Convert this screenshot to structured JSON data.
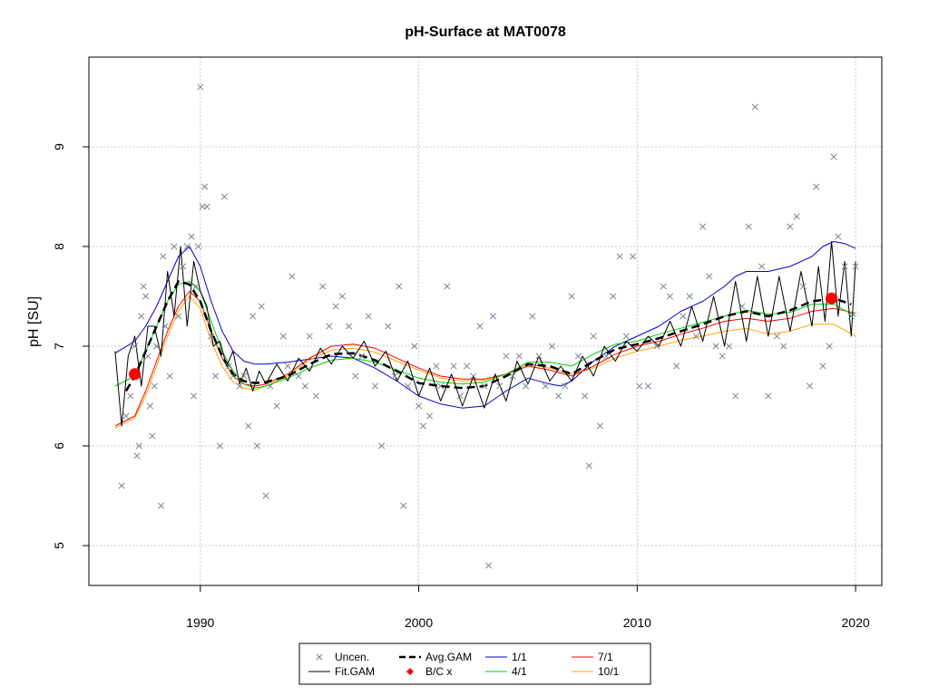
{
  "chart_data": {
    "type": "scatter",
    "title": "pH-Surface at MAT0078",
    "xlabel": "",
    "ylabel": "pH [SU]",
    "xlim": [
      1984.9,
      2021.2
    ],
    "ylim": [
      4.6,
      9.9
    ],
    "x_ticks": [
      1990,
      2000,
      2010,
      2020
    ],
    "x_tick_labels": [
      "1990",
      "2000",
      "2010",
      "2020"
    ],
    "y_ticks": [
      5,
      6,
      7,
      8,
      9
    ],
    "y_tick_labels": [
      "5",
      "6",
      "7",
      "8",
      "9"
    ],
    "grid": true,
    "legend_position": "bottom",
    "legend": [
      {
        "label": "Uncen.",
        "symbol": "x",
        "color": "#708090"
      },
      {
        "label": "Avg.GAM",
        "symbol": "dashed-line",
        "color": "#000000"
      },
      {
        "label": "1/1",
        "symbol": "line",
        "color": "#0000CD"
      },
      {
        "label": "7/1",
        "symbol": "line",
        "color": "#FF0000"
      },
      {
        "label": "Fit.GAM",
        "symbol": "line",
        "color": "#000000"
      },
      {
        "label": "B/C x",
        "symbol": "diamond",
        "color": "#FF0000"
      },
      {
        "label": "4/1",
        "symbol": "line",
        "color": "#00CD00"
      },
      {
        "label": "10/1",
        "symbol": "line",
        "color": "#FFA500"
      }
    ],
    "series": [
      {
        "name": "1/1",
        "color": "#0000CD",
        "x": [
          1986.1,
          1987,
          1987.5,
          1988,
          1988.5,
          1989,
          1989.5,
          1990,
          1990.5,
          1991,
          1991.5,
          1992,
          1992.5,
          1993,
          1994,
          1995,
          1996,
          1997,
          1998,
          1999,
          2000,
          2001,
          2002,
          2003,
          2004,
          2005,
          2006,
          2006.5,
          2007,
          2008,
          2009,
          2010,
          2011,
          2012,
          2013,
          2014,
          2014.5,
          2015,
          2015.5,
          2016,
          2017,
          2018,
          2018.5,
          2019,
          2019.5,
          2020
        ],
        "y": [
          6.93,
          7.05,
          7.2,
          7.4,
          7.65,
          7.9,
          8.0,
          7.8,
          7.45,
          7.15,
          6.95,
          6.85,
          6.82,
          6.82,
          6.84,
          6.87,
          6.9,
          6.88,
          6.78,
          6.65,
          6.5,
          6.42,
          6.38,
          6.4,
          6.55,
          6.68,
          6.62,
          6.6,
          6.65,
          6.85,
          7.0,
          7.1,
          7.2,
          7.35,
          7.45,
          7.6,
          7.7,
          7.75,
          7.75,
          7.75,
          7.8,
          7.9,
          8.0,
          8.05,
          8.03,
          7.98
        ]
      },
      {
        "name": "7/1",
        "color": "#FF0000",
        "x": [
          1986.1,
          1987,
          1987.5,
          1988,
          1988.5,
          1989,
          1989.5,
          1990,
          1990.5,
          1991,
          1991.5,
          1992,
          1992.5,
          1993,
          1994,
          1995,
          1996,
          1997,
          1998,
          1999,
          2000,
          2001,
          2002,
          2003,
          2004,
          2005,
          2006,
          2007,
          2008,
          2009,
          2010,
          2011,
          2012,
          2013,
          2014,
          2015,
          2016,
          2017,
          2018,
          2019,
          2020
        ],
        "y": [
          6.2,
          6.3,
          6.55,
          6.85,
          7.15,
          7.4,
          7.55,
          7.45,
          7.15,
          6.88,
          6.7,
          6.62,
          6.6,
          6.62,
          6.72,
          6.88,
          7.0,
          7.02,
          6.98,
          6.88,
          6.78,
          6.7,
          6.67,
          6.67,
          6.72,
          6.8,
          6.76,
          6.7,
          6.8,
          6.92,
          7.0,
          7.05,
          7.12,
          7.18,
          7.25,
          7.28,
          7.25,
          7.28,
          7.35,
          7.38,
          7.33
        ]
      },
      {
        "name": "4/1",
        "color": "#00CD00",
        "x": [
          1986.1,
          1987,
          1987.5,
          1988,
          1988.5,
          1989,
          1989.5,
          1990,
          1990.5,
          1991,
          1991.5,
          1992,
          1992.5,
          1993,
          1994,
          1995,
          1996,
          1997,
          1998,
          1999,
          2000,
          2001,
          2002,
          2003,
          2004,
          2005,
          2006,
          2007,
          2008,
          2009,
          2010,
          2011,
          2012,
          2013,
          2014,
          2015,
          2016,
          2017,
          2018,
          2019,
          2020
        ],
        "y": [
          6.6,
          6.7,
          6.95,
          7.2,
          7.45,
          7.62,
          7.65,
          7.55,
          7.25,
          6.95,
          6.75,
          6.62,
          6.58,
          6.6,
          6.68,
          6.78,
          6.86,
          6.88,
          6.84,
          6.76,
          6.68,
          6.64,
          6.62,
          6.64,
          6.72,
          6.84,
          6.84,
          6.8,
          6.92,
          7.02,
          7.05,
          7.12,
          7.18,
          7.24,
          7.3,
          7.36,
          7.32,
          7.34,
          7.42,
          7.42,
          7.3
        ]
      },
      {
        "name": "10/1",
        "color": "#FFA500",
        "x": [
          1986.1,
          1987,
          1987.5,
          1988,
          1988.5,
          1989,
          1989.5,
          1990,
          1990.5,
          1991,
          1991.5,
          1992,
          1992.5,
          1993,
          1994,
          1995,
          1996,
          1997,
          1998,
          1999,
          2000,
          2001,
          2002,
          2003,
          2004,
          2005,
          2006,
          2007,
          2008,
          2009,
          2010,
          2011,
          2012,
          2013,
          2014,
          2015,
          2016,
          2017,
          2018,
          2019,
          2020
        ],
        "y": [
          6.18,
          6.28,
          6.5,
          6.8,
          7.1,
          7.35,
          7.5,
          7.38,
          7.05,
          6.8,
          6.64,
          6.58,
          6.56,
          6.6,
          6.7,
          6.86,
          6.96,
          6.98,
          6.94,
          6.85,
          6.76,
          6.68,
          6.65,
          6.66,
          6.72,
          6.82,
          6.78,
          6.72,
          6.78,
          6.88,
          6.95,
          7.0,
          7.06,
          7.1,
          7.15,
          7.18,
          7.12,
          7.15,
          7.22,
          7.22,
          7.1
        ]
      },
      {
        "name": "Avg.GAM",
        "color": "#000000",
        "x": [
          1986.6,
          1987,
          1987.5,
          1988,
          1988.5,
          1989,
          1989.5,
          1990,
          1990.5,
          1991,
          1991.5,
          1992,
          1992.5,
          1993,
          1994,
          1995,
          1996,
          1997,
          1998,
          1999,
          2000,
          2001,
          2002,
          2003,
          2004,
          2005,
          2006,
          2007,
          2008,
          2009,
          2010,
          2011,
          2012,
          2013,
          2014,
          2015,
          2016,
          2017,
          2018,
          2019,
          2019.8
        ],
        "y": [
          6.55,
          6.7,
          6.95,
          7.2,
          7.45,
          7.65,
          7.62,
          7.45,
          7.15,
          6.9,
          6.72,
          6.65,
          6.63,
          6.64,
          6.7,
          6.82,
          6.92,
          6.93,
          6.86,
          6.75,
          6.63,
          6.6,
          6.58,
          6.6,
          6.7,
          6.82,
          6.8,
          6.72,
          6.85,
          6.97,
          7.02,
          7.08,
          7.15,
          7.22,
          7.3,
          7.35,
          7.3,
          7.36,
          7.45,
          7.48,
          7.42
        ]
      },
      {
        "name": "Fit.GAM",
        "color": "#000000",
        "x": [
          1986.1,
          1986.4,
          1986.7,
          1987,
          1987.3,
          1987.6,
          1987.9,
          1988.2,
          1988.5,
          1988.8,
          1989.1,
          1989.4,
          1989.7,
          1990,
          1990.3,
          1990.6,
          1990.9,
          1991.2,
          1991.5,
          1991.8,
          1992.1,
          1992.4,
          1992.7,
          1993,
          1993.5,
          1994,
          1994.5,
          1995,
          1995.5,
          1996,
          1996.5,
          1997,
          1997.5,
          1998,
          1998.5,
          1999,
          1999.5,
          2000,
          2000.5,
          2001,
          2001.5,
          2002,
          2002.5,
          2003,
          2003.5,
          2004,
          2004.5,
          2005,
          2005.5,
          2006,
          2006.5,
          2007,
          2007.5,
          2008,
          2008.5,
          2009,
          2009.5,
          2010,
          2010.5,
          2011,
          2011.5,
          2012,
          2012.5,
          2013,
          2013.5,
          2014,
          2014.5,
          2015,
          2015.5,
          2016,
          2016.5,
          2017,
          2017.5,
          2018,
          2018.3,
          2018.6,
          2018.9,
          2019.2,
          2019.5,
          2019.8,
          2020
        ],
        "y": [
          6.95,
          6.2,
          6.9,
          7.1,
          6.6,
          7.2,
          7.2,
          6.9,
          7.75,
          7.3,
          8.0,
          7.2,
          7.85,
          7.55,
          7.4,
          7.0,
          7.05,
          6.8,
          6.95,
          6.62,
          6.78,
          6.55,
          6.75,
          6.62,
          6.82,
          6.65,
          6.88,
          6.75,
          6.98,
          6.82,
          7.0,
          6.88,
          7.05,
          6.8,
          6.95,
          6.65,
          6.85,
          6.5,
          6.78,
          6.45,
          6.72,
          6.4,
          6.7,
          6.38,
          6.72,
          6.45,
          6.85,
          6.62,
          6.9,
          6.65,
          6.8,
          6.65,
          6.9,
          6.7,
          7.0,
          6.85,
          7.05,
          6.95,
          7.1,
          7.0,
          7.25,
          7.0,
          7.4,
          7.05,
          7.5,
          7.0,
          7.65,
          7.05,
          7.7,
          7.1,
          7.7,
          7.15,
          7.75,
          7.2,
          7.8,
          7.25,
          8.05,
          7.3,
          7.85,
          7.1,
          7.85
        ]
      }
    ],
    "scatter": {
      "name": "Uncen.",
      "color": "#708090",
      "points": [
        [
          1986.4,
          5.6
        ],
        [
          1986.6,
          6.3
        ],
        [
          1986.8,
          6.5
        ],
        [
          1987.0,
          7.0
        ],
        [
          1987.1,
          5.9
        ],
        [
          1987.2,
          6.0
        ],
        [
          1987.3,
          7.3
        ],
        [
          1987.4,
          7.6
        ],
        [
          1987.5,
          7.5
        ],
        [
          1987.6,
          6.9
        ],
        [
          1987.7,
          6.4
        ],
        [
          1987.8,
          6.1
        ],
        [
          1987.9,
          6.6
        ],
        [
          1988.0,
          7.0
        ],
        [
          1988.2,
          5.4
        ],
        [
          1988.3,
          7.9
        ],
        [
          1988.4,
          7.2
        ],
        [
          1988.6,
          6.7
        ],
        [
          1988.8,
          8.0
        ],
        [
          1989.0,
          7.3
        ],
        [
          1989.2,
          7.8
        ],
        [
          1989.4,
          8.0
        ],
        [
          1989.6,
          8.1
        ],
        [
          1989.7,
          6.5
        ],
        [
          1989.8,
          7.6
        ],
        [
          1989.9,
          8.0
        ],
        [
          1990.0,
          9.6
        ],
        [
          1990.1,
          8.4
        ],
        [
          1990.2,
          8.6
        ],
        [
          1990.3,
          8.4
        ],
        [
          1990.5,
          7.1
        ],
        [
          1990.7,
          6.7
        ],
        [
          1990.9,
          6.0
        ],
        [
          1991.1,
          8.5
        ],
        [
          1991.3,
          6.8
        ],
        [
          1991.5,
          6.7
        ],
        [
          1991.8,
          6.6
        ],
        [
          1992.0,
          6.7
        ],
        [
          1992.2,
          6.2
        ],
        [
          1992.4,
          7.3
        ],
        [
          1992.6,
          6.0
        ],
        [
          1992.8,
          7.4
        ],
        [
          1993.0,
          5.5
        ],
        [
          1993.2,
          6.6
        ],
        [
          1993.5,
          6.4
        ],
        [
          1993.8,
          7.1
        ],
        [
          1994.0,
          6.8
        ],
        [
          1994.2,
          7.7
        ],
        [
          1994.5,
          6.7
        ],
        [
          1994.8,
          6.6
        ],
        [
          1995.0,
          7.1
        ],
        [
          1995.3,
          6.5
        ],
        [
          1995.6,
          7.6
        ],
        [
          1995.9,
          7.2
        ],
        [
          1996.2,
          7.4
        ],
        [
          1996.5,
          7.5
        ],
        [
          1996.8,
          7.2
        ],
        [
          1997.1,
          6.7
        ],
        [
          1997.4,
          6.9
        ],
        [
          1997.7,
          7.3
        ],
        [
          1998.0,
          6.6
        ],
        [
          1998.3,
          6.0
        ],
        [
          1998.6,
          7.2
        ],
        [
          1998.9,
          6.7
        ],
        [
          1999.1,
          7.6
        ],
        [
          1999.3,
          5.4
        ],
        [
          1999.5,
          6.6
        ],
        [
          1999.8,
          7.0
        ],
        [
          2000.0,
          6.4
        ],
        [
          2000.2,
          6.2
        ],
        [
          2000.5,
          6.3
        ],
        [
          2000.8,
          6.8
        ],
        [
          2001.0,
          6.6
        ],
        [
          2001.3,
          7.6
        ],
        [
          2001.6,
          6.8
        ],
        [
          2001.9,
          6.5
        ],
        [
          2002.2,
          6.8
        ],
        [
          2002.5,
          6.7
        ],
        [
          2002.8,
          7.2
        ],
        [
          2003.0,
          6.6
        ],
        [
          2003.2,
          4.8
        ],
        [
          2003.4,
          7.3
        ],
        [
          2003.7,
          6.6
        ],
        [
          2004.0,
          6.9
        ],
        [
          2004.3,
          6.7
        ],
        [
          2004.6,
          6.9
        ],
        [
          2004.9,
          6.6
        ],
        [
          2005.2,
          7.3
        ],
        [
          2005.5,
          6.9
        ],
        [
          2005.8,
          6.6
        ],
        [
          2006.1,
          7.0
        ],
        [
          2006.4,
          6.5
        ],
        [
          2006.7,
          6.6
        ],
        [
          2007.0,
          7.5
        ],
        [
          2007.3,
          6.9
        ],
        [
          2007.6,
          6.5
        ],
        [
          2007.8,
          5.8
        ],
        [
          2008.0,
          7.1
        ],
        [
          2008.3,
          6.2
        ],
        [
          2008.6,
          6.9
        ],
        [
          2008.9,
          7.5
        ],
        [
          2009.2,
          7.9
        ],
        [
          2009.5,
          7.1
        ],
        [
          2009.8,
          7.9
        ],
        [
          2010.1,
          6.6
        ],
        [
          2010.5,
          6.6
        ],
        [
          2010.9,
          7.0
        ],
        [
          2011.2,
          7.6
        ],
        [
          2011.5,
          7.5
        ],
        [
          2011.8,
          6.8
        ],
        [
          2012.1,
          7.3
        ],
        [
          2012.4,
          7.5
        ],
        [
          2012.7,
          7.1
        ],
        [
          2013.0,
          8.2
        ],
        [
          2013.3,
          7.7
        ],
        [
          2013.6,
          7.0
        ],
        [
          2013.9,
          6.9
        ],
        [
          2014.2,
          7.0
        ],
        [
          2014.5,
          6.5
        ],
        [
          2014.8,
          7.4
        ],
        [
          2015.1,
          8.2
        ],
        [
          2015.4,
          9.4
        ],
        [
          2015.7,
          7.8
        ],
        [
          2016.0,
          6.5
        ],
        [
          2016.4,
          7.1
        ],
        [
          2016.7,
          7.0
        ],
        [
          2017.0,
          8.2
        ],
        [
          2017.3,
          8.3
        ],
        [
          2017.6,
          7.6
        ],
        [
          2017.9,
          6.6
        ],
        [
          2018.2,
          8.6
        ],
        [
          2018.5,
          6.8
        ],
        [
          2018.8,
          7.0
        ],
        [
          2019.0,
          8.9
        ],
        [
          2019.2,
          8.1
        ],
        [
          2019.5,
          7.8
        ],
        [
          2019.8,
          7.3
        ],
        [
          2020.0,
          7.8
        ]
      ]
    },
    "bc_points": [
      [
        1987.0,
        6.72
      ],
      [
        2018.9,
        7.48
      ]
    ]
  }
}
